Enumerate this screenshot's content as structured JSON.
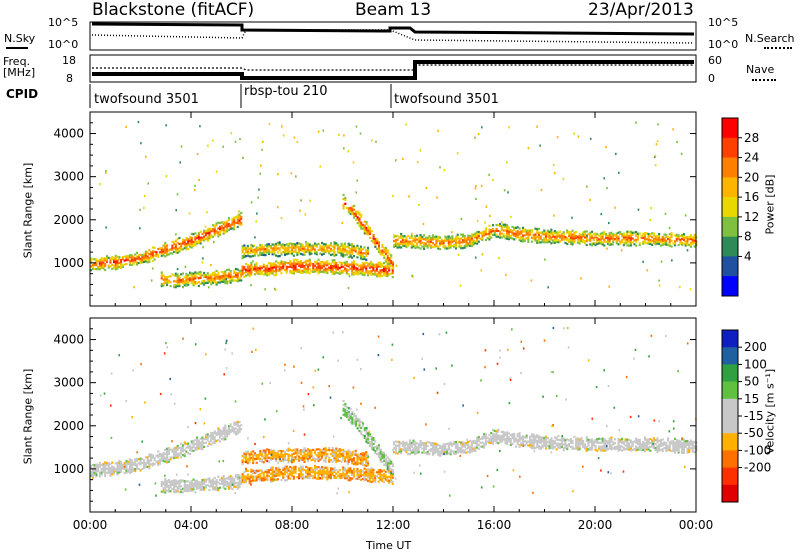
{
  "header": {
    "station": "Blackstone (fitACF)",
    "beam": "Beam 13",
    "date": "23/Apr/2013"
  },
  "top_panels": {
    "nsky_label": "N.Sky",
    "nsky_ticks": [
      "10^5",
      "10^0"
    ],
    "nsearch_label": "N.Search",
    "nsearch_ticks": [
      "10^5",
      "10^0"
    ],
    "freq_label": "Freq.",
    "freq_unit": "[MHz]",
    "freq_ticks": [
      "18",
      "8"
    ],
    "nave_label": "Nave",
    "nave_ticks": [
      "60",
      "0"
    ],
    "cpid_label": "CPID",
    "cpid_segments": [
      {
        "label": "twofsound 3501",
        "start_hour": 0,
        "end_hour": 6
      },
      {
        "label": "rbsp-tou 210",
        "start_hour": 6,
        "end_hour": 12
      },
      {
        "label": "twofsound 3501",
        "start_hour": 12,
        "end_hour": 24
      }
    ]
  },
  "power_colorbar": {
    "label": "Power [dB]",
    "ticks": [
      "28",
      "24",
      "20",
      "16",
      "12",
      "8",
      "4"
    ],
    "colors": [
      "#ff0000",
      "#ff4000",
      "#ff8000",
      "#ffb400",
      "#e8d800",
      "#7fc040",
      "#2e8b57",
      "#2050a0",
      "#0000ff"
    ]
  },
  "velocity_colorbar": {
    "label": "Velocity [m s⁻¹]",
    "ticks": [
      "200",
      "100",
      "50",
      "15",
      "-15",
      "-50",
      "-100",
      "-200"
    ],
    "colors": [
      "#1020c0",
      "#2060a0",
      "#30a040",
      "#60c040",
      "#c8c8c8",
      "#c8c8c8",
      "#ffb000",
      "#ff7000",
      "#ff3000",
      "#e00000"
    ]
  },
  "chart_data": [
    {
      "type": "heatmap",
      "title": "",
      "xlabel": "Time UT",
      "ylabel": "Slant Range [km]",
      "xlim": [
        0,
        24
      ],
      "ylim": [
        0,
        4500
      ],
      "xticks": [
        "00:00",
        "04:00",
        "08:00",
        "12:00",
        "16:00",
        "20:00",
        "00:00"
      ],
      "yticks": [
        "1000",
        "2000",
        "3000",
        "4000"
      ],
      "ytick_values": [
        1000,
        2000,
        3000,
        4000
      ],
      "colorbar": "Power [dB]",
      "clim": [
        0,
        30
      ],
      "bands": [
        {
          "x": [
            0,
            1,
            2,
            3,
            4,
            5,
            6
          ],
          "y": [
            950,
            1000,
            1100,
            1300,
            1500,
            1750,
            2000
          ],
          "power": 26
        },
        {
          "x": [
            2.8,
            3.5,
            4,
            5,
            6
          ],
          "y": [
            600,
            580,
            600,
            650,
            700
          ],
          "power": 24
        },
        {
          "x": [
            6,
            7,
            8,
            9,
            10,
            11,
            12
          ],
          "y": [
            820,
            850,
            900,
            900,
            880,
            850,
            800
          ],
          "power": 27
        },
        {
          "x": [
            6,
            7,
            8,
            9,
            10,
            11
          ],
          "y": [
            1250,
            1300,
            1300,
            1320,
            1300,
            1200
          ],
          "power": 22
        },
        {
          "x": [
            10,
            10.5,
            11,
            11.5,
            12
          ],
          "y": [
            2400,
            2100,
            1700,
            1300,
            950
          ],
          "power": 26
        },
        {
          "x": [
            12,
            13,
            14,
            15,
            16,
            17,
            18,
            20,
            22,
            24
          ],
          "y": [
            1500,
            1480,
            1450,
            1500,
            1750,
            1650,
            1600,
            1550,
            1550,
            1500
          ],
          "power": 24
        }
      ]
    },
    {
      "type": "heatmap",
      "title": "",
      "xlabel": "Time UT",
      "ylabel": "Slant Range [km]",
      "xlim": [
        0,
        24
      ],
      "ylim": [
        0,
        4500
      ],
      "xticks": [
        "00:00",
        "04:00",
        "08:00",
        "12:00",
        "16:00",
        "20:00",
        "00:00"
      ],
      "yticks": [
        "1000",
        "2000",
        "3000",
        "4000"
      ],
      "ytick_values": [
        1000,
        2000,
        3000,
        4000
      ],
      "colorbar": "Velocity [m s⁻¹]",
      "clim": [
        -200,
        200
      ],
      "bands": [
        {
          "x": [
            0,
            1,
            2,
            3,
            4,
            5,
            6
          ],
          "y": [
            950,
            1000,
            1100,
            1300,
            1500,
            1750,
            2000
          ],
          "velocity": 0
        },
        {
          "x": [
            2.8,
            3.5,
            4,
            5,
            6
          ],
          "y": [
            600,
            580,
            600,
            650,
            700
          ],
          "velocity": 0
        },
        {
          "x": [
            6,
            7,
            8,
            9,
            10,
            11,
            12
          ],
          "y": [
            820,
            850,
            900,
            900,
            880,
            850,
            800
          ],
          "velocity": -60
        },
        {
          "x": [
            6,
            7,
            8,
            9,
            10,
            11
          ],
          "y": [
            1250,
            1300,
            1300,
            1320,
            1300,
            1200
          ],
          "velocity": -60
        },
        {
          "x": [
            10,
            10.5,
            11,
            11.5,
            12
          ],
          "y": [
            2400,
            2100,
            1700,
            1300,
            950
          ],
          "velocity": 40
        },
        {
          "x": [
            12,
            13,
            14,
            15,
            16,
            17,
            18,
            20,
            22,
            24
          ],
          "y": [
            1500,
            1480,
            1450,
            1500,
            1750,
            1650,
            1600,
            1550,
            1550,
            1500
          ],
          "velocity": 0
        }
      ]
    }
  ]
}
